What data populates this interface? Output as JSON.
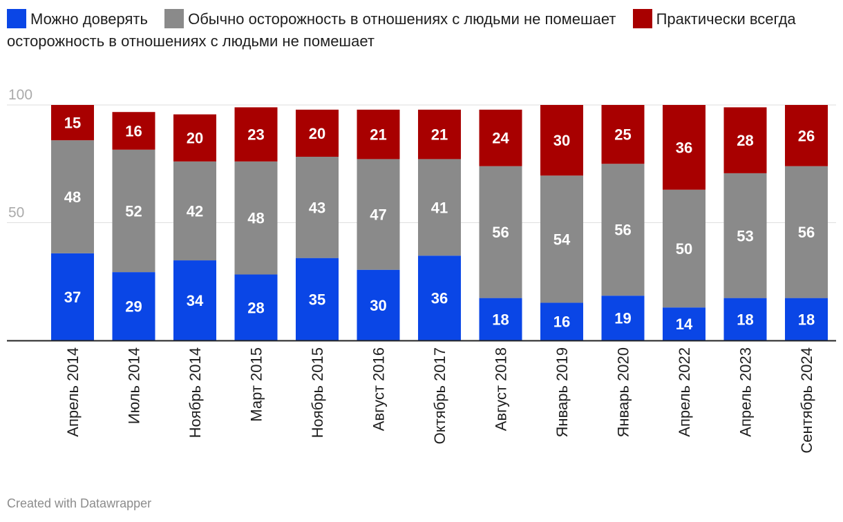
{
  "legend": [
    {
      "label": "Можно доверять",
      "color": "#0a46e6"
    },
    {
      "label": "Обычно осторожность в отношениях с людьми не помешает",
      "color": "#8a8a8a"
    },
    {
      "label": "Практически всегда осторожность в отношениях с людьми не помешает",
      "color": "#a80000"
    }
  ],
  "chart_data": {
    "type": "bar",
    "stacked": true,
    "title": "",
    "xlabel": "",
    "ylabel": "",
    "ylim": [
      0,
      100
    ],
    "yticks": [
      "100",
      "50"
    ],
    "categories": [
      "Апрель 2014",
      "Июль 2014",
      "Ноябрь 2014",
      "Март 2015",
      "Ноябрь 2015",
      "Август 2016",
      "Октябрь 2017",
      "Август 2018",
      "Январь 2019",
      "Январь 2020",
      "Апрель 2022",
      "Апрель 2023",
      "Сентябрь 2024"
    ],
    "series": [
      {
        "name": "Можно доверять",
        "color": "#0a46e6",
        "values": [
          37,
          29,
          34,
          28,
          35,
          30,
          36,
          18,
          16,
          19,
          14,
          18,
          18
        ]
      },
      {
        "name": "Обычно осторожность в отношениях с людьми не помешает",
        "color": "#8a8a8a",
        "values": [
          48,
          52,
          42,
          48,
          43,
          47,
          41,
          56,
          54,
          56,
          50,
          53,
          56
        ]
      },
      {
        "name": "Практически всегда осторожность в отношениях с людьми не помешает",
        "color": "#a80000",
        "values": [
          15,
          16,
          20,
          23,
          20,
          21,
          21,
          24,
          30,
          25,
          36,
          28,
          26
        ]
      }
    ]
  },
  "footer": "Created with Datawrapper"
}
